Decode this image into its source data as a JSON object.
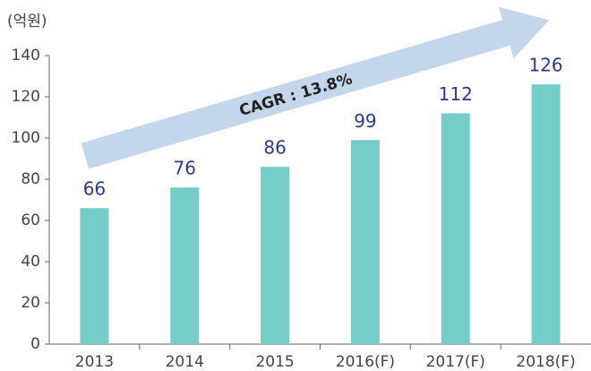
{
  "chart_data": {
    "type": "bar",
    "y_label": "(억원)",
    "annotation": "CAGR : 13.8%",
    "categories": [
      "2013",
      "2014",
      "2015",
      "2016(F)",
      "2017(F)",
      "2018(F)"
    ],
    "values": [
      66,
      76,
      86,
      99,
      112,
      126
    ],
    "color": "#75cdc8",
    "label_color": "#2b3a8a",
    "ylim": [
      0,
      140
    ],
    "yticks": [
      0,
      20,
      40,
      60,
      80,
      100,
      120,
      140
    ]
  }
}
